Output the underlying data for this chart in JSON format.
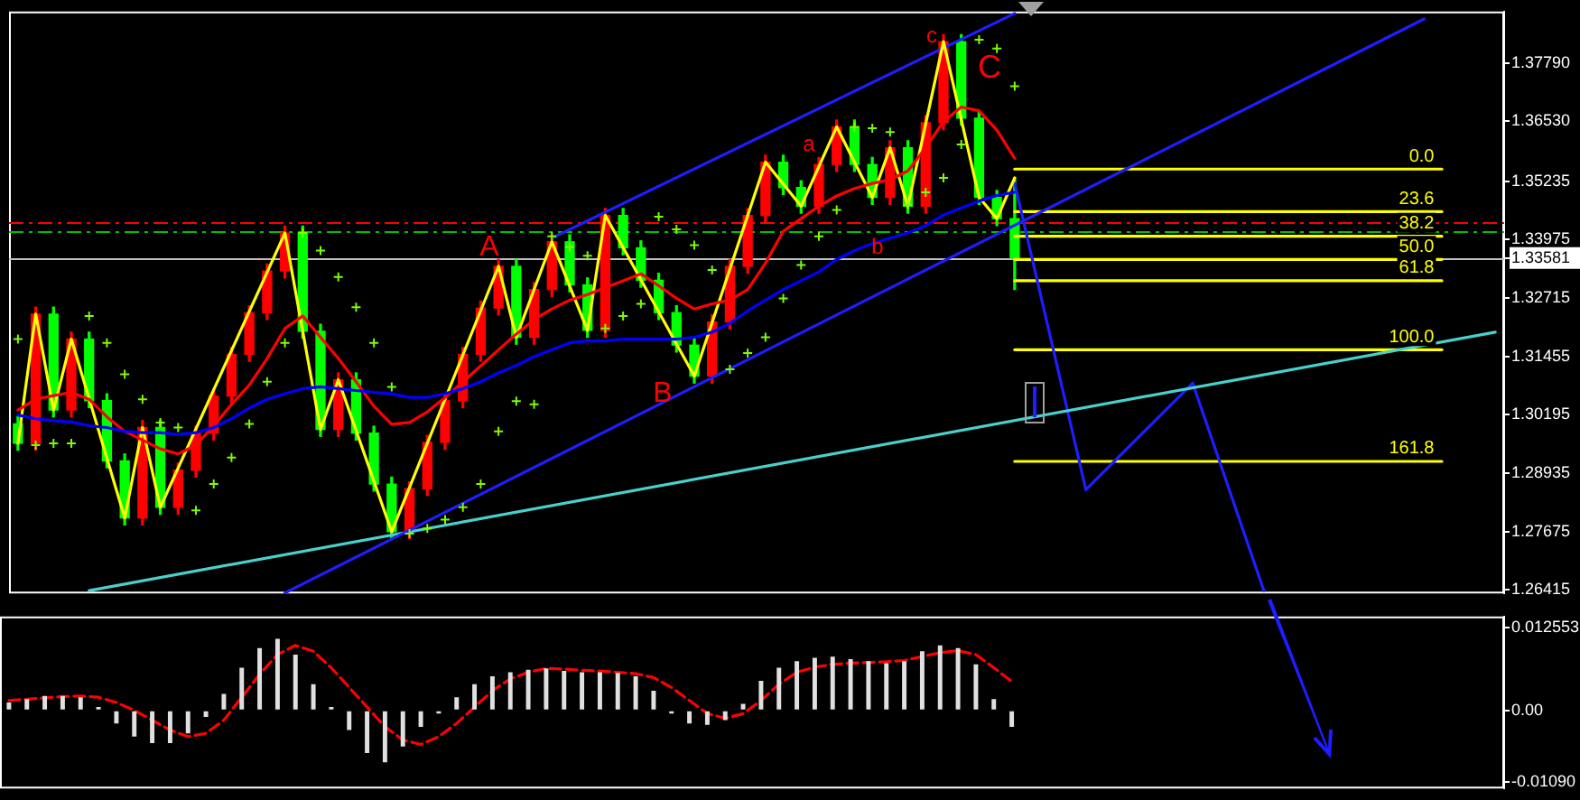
{
  "chart_data": [
    {
      "type": "candlestick",
      "categories": [
        null,
        null,
        null,
        null,
        null,
        null,
        null,
        null,
        null,
        null,
        null,
        null,
        null,
        null,
        null,
        null,
        null,
        null,
        null,
        null,
        null,
        null,
        null,
        null,
        null,
        null,
        null,
        null,
        null,
        null,
        null,
        null,
        null,
        null,
        null,
        null,
        null,
        null,
        null,
        null,
        null,
        null,
        null,
        null,
        null,
        null,
        null,
        null,
        null,
        null,
        null,
        null,
        null,
        null,
        null,
        null,
        null,
        null,
        null,
        null,
        null,
        null,
        null,
        null,
        null,
        null,
        null,
        null,
        null,
        null,
        null,
        null,
        null,
        null,
        null,
        null,
        null,
        null,
        null,
        null,
        null,
        null,
        null,
        null
      ],
      "ohlc": [
        [
          1.3,
          1.3015,
          1.2943,
          1.2958
        ],
        [
          1.2958,
          1.3252,
          1.2943,
          1.3237
        ],
        [
          1.3237,
          1.3252,
          1.3015,
          1.303
        ],
        [
          1.303,
          1.3198,
          1.3015,
          1.3183
        ],
        [
          1.3183,
          1.3198,
          1.3035,
          1.305
        ],
        [
          1.305,
          1.3065,
          1.2905,
          1.292
        ],
        [
          1.292,
          1.2935,
          1.2782,
          1.2797
        ],
        [
          1.2797,
          1.3007,
          1.2782,
          1.2992
        ],
        [
          1.2992,
          1.3007,
          1.2805,
          1.282
        ],
        [
          1.282,
          1.2915,
          1.2805,
          1.29
        ],
        [
          1.29,
          1.2995,
          1.2885,
          1.298
        ],
        [
          1.298,
          1.3075,
          1.2965,
          1.306
        ],
        [
          1.306,
          1.3165,
          1.3045,
          1.315
        ],
        [
          1.315,
          1.3255,
          1.3135,
          1.324
        ],
        [
          1.324,
          1.3345,
          1.3225,
          1.333
        ],
        [
          1.333,
          1.3427,
          1.3315,
          1.3412
        ],
        [
          1.3412,
          1.3427,
          1.3185,
          1.32
        ],
        [
          1.32,
          1.3215,
          1.2973,
          1.2988
        ],
        [
          1.2988,
          1.311,
          1.2973,
          1.3095
        ],
        [
          1.3095,
          1.311,
          1.2965,
          1.298
        ],
        [
          1.298,
          1.2995,
          1.2855,
          1.287
        ],
        [
          1.287,
          1.2885,
          1.2752,
          1.2767
        ],
        [
          1.2767,
          1.2875,
          1.2752,
          1.286
        ],
        [
          1.286,
          1.2975,
          1.2845,
          1.296
        ],
        [
          1.296,
          1.3065,
          1.2945,
          1.305
        ],
        [
          1.305,
          1.3165,
          1.3035,
          1.315
        ],
        [
          1.315,
          1.3265,
          1.3135,
          1.325
        ],
        [
          1.325,
          1.3355,
          1.3235,
          1.334
        ],
        [
          1.334,
          1.3355,
          1.3172,
          1.3187
        ],
        [
          1.3187,
          1.3305,
          1.3172,
          1.329
        ],
        [
          1.329,
          1.3408,
          1.3275,
          1.3393
        ],
        [
          1.3393,
          1.3408,
          1.3285,
          1.33
        ],
        [
          1.33,
          1.3315,
          1.3187,
          1.3202
        ],
        [
          1.3202,
          1.3465,
          1.3187,
          1.345
        ],
        [
          1.345,
          1.3465,
          1.3365,
          1.338
        ],
        [
          1.338,
          1.3395,
          1.3295,
          1.331
        ],
        [
          1.331,
          1.3325,
          1.3225,
          1.324
        ],
        [
          1.324,
          1.3255,
          1.3155,
          1.317
        ],
        [
          1.317,
          1.3185,
          1.3088,
          1.3103
        ],
        [
          1.3103,
          1.3235,
          1.3088,
          1.322
        ],
        [
          1.322,
          1.3355,
          1.3205,
          1.334
        ],
        [
          1.334,
          1.3465,
          1.3325,
          1.345
        ],
        [
          1.345,
          1.358,
          1.3435,
          1.3565
        ],
        [
          1.3565,
          1.358,
          1.3495,
          1.351
        ],
        [
          1.351,
          1.3525,
          1.3455,
          1.347
        ],
        [
          1.347,
          1.3575,
          1.3455,
          1.356
        ],
        [
          1.356,
          1.3656,
          1.3545,
          1.3641
        ],
        [
          1.3641,
          1.3656,
          1.3545,
          1.356
        ],
        [
          1.356,
          1.3575,
          1.3474,
          1.3489
        ],
        [
          1.3489,
          1.3611,
          1.3474,
          1.3596
        ],
        [
          1.3596,
          1.3611,
          1.3455,
          1.347
        ],
        [
          1.347,
          1.3665,
          1.3455,
          1.365
        ],
        [
          1.365,
          1.384,
          1.3635,
          1.3825
        ],
        [
          1.3825,
          1.384,
          1.3645,
          1.366
        ],
        [
          1.366,
          1.3675,
          1.3474,
          1.3489
        ],
        [
          1.3489,
          1.3504,
          1.3428,
          1.3443
        ],
        [
          1.3443,
          1.3531,
          1.329,
          1.3358
        ],
        null,
        null,
        null,
        null,
        null,
        null,
        null,
        null,
        null,
        null,
        null,
        null,
        null,
        null,
        null,
        null,
        null,
        null,
        null,
        null,
        null,
        null,
        null,
        null,
        null,
        null,
        null
      ],
      "colors": [
        "#00ff00",
        "#ff0000",
        "#00ff00",
        "#ff0000",
        "#00ff00",
        "#00ff00",
        "#00ff00",
        "#ff0000",
        "#00ff00",
        "#ff0000",
        "#ff0000",
        "#ff0000",
        "#ff0000",
        "#ff0000",
        "#ff0000",
        "#ff0000",
        "#00ff00",
        "#00ff00",
        "#ff0000",
        "#00ff00",
        "#00ff00",
        "#00ff00",
        "#ff0000",
        "#ff0000",
        "#ff0000",
        "#ff0000",
        "#ff0000",
        "#ff0000",
        "#00ff00",
        "#ff0000",
        "#ff0000",
        "#00ff00",
        "#00ff00",
        "#ff0000",
        "#00ff00",
        "#00ff00",
        "#00ff00",
        "#00ff00",
        "#00ff00",
        "#ff0000",
        "#ff0000",
        "#ff0000",
        "#ff0000",
        "#00ff00",
        "#00ff00",
        "#ff0000",
        "#ff0000",
        "#00ff00",
        "#00ff00",
        "#ff0000",
        "#00ff00",
        "#ff0000",
        "#ff0000",
        "#00ff00",
        "#00ff00",
        "#00ff00",
        "#00ff00",
        null,
        null,
        null,
        null,
        null,
        null,
        null,
        null,
        null,
        null,
        null,
        null,
        null,
        null,
        null,
        null,
        null,
        null,
        null,
        null,
        null,
        null,
        null,
        null,
        null,
        null,
        null
      ],
      "series": [
        {
          "type": "line",
          "color": "#0000ff",
          "values": [
            1.3019,
            1.3011,
            1.3007,
            1.3004,
            1.2996,
            1.2992,
            1.2984,
            1.2981,
            1.2981,
            1.2977,
            1.2981,
            1.2992,
            1.3011,
            1.3034,
            1.3053,
            1.3065,
            1.3076,
            1.308,
            1.3076,
            1.3072,
            1.3068,
            1.3065,
            1.3057,
            1.3057,
            1.3065,
            1.3076,
            1.3091,
            1.311,
            1.3126,
            1.3145,
            1.316,
            1.3175,
            1.3179,
            1.3179,
            1.3183,
            1.3183,
            1.3183,
            1.3183,
            1.3187,
            1.3198,
            1.3217,
            1.3244,
            1.3267,
            1.329,
            1.3309,
            1.3328,
            1.3355,
            1.3374,
            1.3389,
            1.3401,
            1.3412,
            1.3428,
            1.3451,
            1.3466,
            1.3481,
            1.3493,
            1.35,
            null,
            null,
            null,
            null,
            null,
            null,
            null,
            null,
            null,
            null,
            null,
            null,
            null,
            null,
            null,
            null,
            null,
            null,
            null,
            null,
            null,
            null,
            null,
            null,
            null,
            null,
            null
          ]
        },
        {
          "type": "line",
          "color": "#ff0000",
          "values": [
            1.303,
            1.3053,
            1.3061,
            1.3068,
            1.3053,
            1.3015,
            1.2984,
            1.2965,
            1.2946,
            1.2935,
            1.2954,
            1.2996,
            1.3042,
            1.3084,
            1.3141,
            1.3206,
            1.3233,
            1.3187,
            1.3141,
            1.3091,
            1.3038,
            1.2999,
            1.3003,
            1.3026,
            1.3057,
            1.3091,
            1.3125,
            1.316,
            1.3194,
            1.3225,
            1.3248,
            1.3267,
            1.3279,
            1.3294,
            1.3309,
            1.3324,
            1.3298,
            1.3271,
            1.3248,
            1.3259,
            1.3267,
            1.329,
            1.3347,
            1.3416,
            1.3443,
            1.347,
            1.3492,
            1.3508,
            1.3519,
            1.3527,
            1.3546,
            1.3596,
            1.3653,
            1.3684,
            1.3676,
            1.3634,
            1.3573,
            null,
            null,
            null,
            null,
            null,
            null,
            null,
            null,
            null,
            null,
            null,
            null,
            null,
            null,
            null,
            null,
            null,
            null,
            null,
            null,
            null,
            null,
            null,
            null,
            null,
            null,
            null
          ]
        },
        {
          "type": "scatter",
          "marker": "cross",
          "color": "#7cfc00",
          "values": [
            1.3183,
            1.2954,
            1.2958,
            1.2958,
            1.3233,
            1.3175,
            1.3107,
            1.3053,
            1.3003,
            1.2992,
            1.2813,
            1.287,
            1.2927,
            1.3,
            1.3091,
            1.3175,
            1.3412,
            1.3374,
            1.3317,
            1.3252,
            1.3175,
            1.308,
            1.2763,
            1.2774,
            1.2793,
            1.282,
            1.287,
            1.2984,
            1.3049,
            1.3042,
            1.3405,
            1.3382,
            1.3363,
            1.3206,
            1.3233,
            1.3259,
            1.3447,
            1.342,
            1.3386,
            1.3332,
            1.3118,
            1.3153,
            1.3187,
            1.3271,
            1.3343,
            1.3405,
            1.3462,
            1.3641,
            1.3638,
            1.363,
            1.3473,
            1.35,
            1.3531,
            1.3603,
            1.3829,
            1.381,
            1.3729,
            null,
            null,
            null,
            null,
            null,
            null,
            null,
            null,
            null,
            null,
            null,
            null,
            null,
            null,
            null,
            null,
            null,
            null,
            null,
            null,
            null,
            null,
            null,
            null,
            null,
            null,
            null
          ]
        },
        {
          "type": "line",
          "color": "#ffff00",
          "values": [
            1.2958,
            1.3237,
            1.303,
            1.3183,
            null,
            null,
            1.2797,
            1.2992,
            1.282,
            null,
            null,
            null,
            null,
            null,
            null,
            1.3412,
            null,
            1.2988,
            1.3095,
            null,
            null,
            1.2767,
            null,
            null,
            null,
            null,
            null,
            1.334,
            1.3187,
            null,
            1.3393,
            null,
            1.3202,
            1.345,
            null,
            null,
            null,
            null,
            1.3103,
            null,
            null,
            null,
            1.3565,
            null,
            1.347,
            null,
            1.3641,
            null,
            1.3489,
            1.3596,
            1.347,
            null,
            1.3825,
            null,
            1.3489,
            1.3443,
            1.3531,
            null,
            null,
            null,
            null,
            null,
            null,
            null,
            null,
            null,
            null,
            null,
            null,
            null,
            null,
            null,
            null,
            null,
            null,
            null,
            null,
            null,
            null,
            null,
            null,
            null,
            null,
            null
          ]
        },
        {
          "type": "line",
          "color": "#1e1eff",
          "values": [
            null,
            null,
            null,
            null,
            null,
            null,
            null,
            null,
            null,
            null,
            null,
            null,
            null,
            null,
            null,
            null,
            null,
            null,
            null,
            null,
            null,
            null,
            null,
            null,
            null,
            null,
            null,
            null,
            null,
            null,
            1.3401,
            null,
            null,
            null,
            null,
            null,
            null,
            null,
            null,
            null,
            null,
            null,
            null,
            null,
            null,
            null,
            null,
            null,
            null,
            null,
            null,
            null,
            null,
            null,
            null,
            null,
            1.3886,
            null,
            null,
            null,
            null,
            null,
            null,
            null,
            null,
            null,
            null,
            null,
            null,
            null,
            null,
            null,
            null,
            null,
            null,
            null,
            null,
            null,
            null,
            null,
            null,
            null,
            null,
            null
          ]
        },
        {
          "type": "line",
          "color": "#1e1eff",
          "values": [
            null,
            null,
            null,
            null,
            null,
            null,
            null,
            null,
            null,
            null,
            null,
            null,
            null,
            null,
            null,
            1.2635,
            null,
            null,
            null,
            null,
            null,
            null,
            null,
            null,
            null,
            null,
            null,
            null,
            null,
            null,
            null,
            null,
            null,
            null,
            null,
            null,
            null,
            null,
            null,
            null,
            null,
            null,
            null,
            null,
            null,
            null,
            null,
            null,
            null,
            null,
            null,
            null,
            null,
            null,
            null,
            null,
            null,
            null,
            null,
            null,
            null,
            null,
            null,
            null,
            null,
            null,
            null,
            null,
            null,
            null,
            null,
            null,
            null,
            null,
            null,
            null,
            null,
            null,
            null,
            1.3874,
            null,
            null,
            null,
            null
          ]
        },
        {
          "type": "line",
          "color": "#48d1cc",
          "values": [
            null,
            null,
            null,
            null,
            1.264,
            null,
            null,
            null,
            null,
            null,
            null,
            null,
            null,
            null,
            null,
            null,
            null,
            null,
            null,
            null,
            null,
            null,
            null,
            null,
            null,
            null,
            null,
            null,
            null,
            null,
            null,
            null,
            null,
            null,
            null,
            null,
            null,
            null,
            null,
            null,
            null,
            null,
            null,
            null,
            null,
            null,
            null,
            null,
            null,
            null,
            null,
            null,
            null,
            null,
            null,
            null,
            null,
            null,
            null,
            null,
            null,
            null,
            null,
            null,
            null,
            null,
            null,
            null,
            null,
            null,
            null,
            null,
            null,
            null,
            null,
            null,
            null,
            null,
            null,
            null,
            null,
            null,
            null,
            1.3198
          ]
        },
        {
          "type": "line",
          "color": "#1e1eff",
          "values": [
            null,
            null,
            null,
            null,
            null,
            null,
            null,
            null,
            null,
            null,
            null,
            null,
            null,
            null,
            null,
            null,
            null,
            null,
            null,
            null,
            null,
            null,
            null,
            null,
            null,
            null,
            null,
            null,
            null,
            null,
            null,
            null,
            null,
            null,
            null,
            null,
            null,
            null,
            null,
            null,
            null,
            null,
            null,
            null,
            null,
            null,
            null,
            null,
            null,
            null,
            null,
            null,
            null,
            null,
            null,
            null,
            1.3519,
            null,
            null,
            null,
            1.2858,
            null,
            null,
            null,
            null,
            null,
            1.3088,
            null,
            null,
            null,
            1.264,
            null,
            null,
            null,
            null,
            null,
            null,
            null,
            null,
            null,
            null,
            null,
            null,
            null
          ]
        },
        {
          "type": "line",
          "color": "#ffff00",
          "values": [
            null,
            null,
            null,
            null,
            null,
            null,
            null,
            null,
            null,
            null,
            null,
            null,
            null,
            null,
            null,
            null,
            null,
            null,
            null,
            null,
            null,
            null,
            null,
            null,
            null,
            null,
            null,
            null,
            null,
            null,
            null,
            null,
            null,
            null,
            null,
            null,
            null,
            null,
            null,
            null,
            null,
            null,
            null,
            null,
            null,
            null,
            null,
            null,
            null,
            null,
            null,
            null,
            null,
            null,
            null,
            null,
            1.355,
            null,
            null,
            null,
            null,
            null,
            null,
            null,
            null,
            null,
            null,
            null,
            null,
            null,
            null,
            null,
            null,
            null,
            null,
            null,
            null,
            null,
            null,
            null,
            1.355,
            null,
            null,
            null
          ]
        },
        {
          "type": "line",
          "color": "#ffff00",
          "values": [
            null,
            null,
            null,
            null,
            null,
            null,
            null,
            null,
            null,
            null,
            null,
            null,
            null,
            null,
            null,
            null,
            null,
            null,
            null,
            null,
            null,
            null,
            null,
            null,
            null,
            null,
            null,
            null,
            null,
            null,
            null,
            null,
            null,
            null,
            null,
            null,
            null,
            null,
            null,
            null,
            null,
            null,
            null,
            null,
            null,
            null,
            null,
            null,
            null,
            null,
            null,
            null,
            null,
            null,
            null,
            null,
            1.3458,
            null,
            null,
            null,
            null,
            null,
            null,
            null,
            null,
            null,
            null,
            null,
            null,
            null,
            null,
            null,
            null,
            null,
            null,
            null,
            null,
            null,
            null,
            null,
            1.3458,
            null,
            null,
            null
          ]
        },
        {
          "type": "line",
          "color": "#ffff00",
          "values": [
            null,
            null,
            null,
            null,
            null,
            null,
            null,
            null,
            null,
            null,
            null,
            null,
            null,
            null,
            null,
            null,
            null,
            null,
            null,
            null,
            null,
            null,
            null,
            null,
            null,
            null,
            null,
            null,
            null,
            null,
            null,
            null,
            null,
            null,
            null,
            null,
            null,
            null,
            null,
            null,
            null,
            null,
            null,
            null,
            null,
            null,
            null,
            null,
            null,
            null,
            null,
            null,
            null,
            null,
            null,
            null,
            1.3405,
            null,
            null,
            null,
            null,
            null,
            null,
            null,
            null,
            null,
            null,
            null,
            null,
            null,
            null,
            null,
            null,
            null,
            null,
            null,
            null,
            null,
            null,
            null,
            1.3405,
            null,
            null,
            null
          ]
        },
        {
          "type": "line",
          "color": "#ffff00",
          "values": [
            null,
            null,
            null,
            null,
            null,
            null,
            null,
            null,
            null,
            null,
            null,
            null,
            null,
            null,
            null,
            null,
            null,
            null,
            null,
            null,
            null,
            null,
            null,
            null,
            null,
            null,
            null,
            null,
            null,
            null,
            null,
            null,
            null,
            null,
            null,
            null,
            null,
            null,
            null,
            null,
            null,
            null,
            null,
            null,
            null,
            null,
            null,
            null,
            null,
            null,
            null,
            null,
            null,
            null,
            null,
            null,
            1.3355,
            null,
            null,
            null,
            null,
            null,
            null,
            null,
            null,
            null,
            null,
            null,
            null,
            null,
            null,
            null,
            null,
            null,
            null,
            null,
            null,
            null,
            null,
            null,
            1.3355,
            null,
            null,
            null
          ]
        },
        {
          "type": "line",
          "color": "#ffff00",
          "values": [
            null,
            null,
            null,
            null,
            null,
            null,
            null,
            null,
            null,
            null,
            null,
            null,
            null,
            null,
            null,
            null,
            null,
            null,
            null,
            null,
            null,
            null,
            null,
            null,
            null,
            null,
            null,
            null,
            null,
            null,
            null,
            null,
            null,
            null,
            null,
            null,
            null,
            null,
            null,
            null,
            null,
            null,
            null,
            null,
            null,
            null,
            null,
            null,
            null,
            null,
            null,
            null,
            null,
            null,
            null,
            null,
            1.3309,
            null,
            null,
            null,
            null,
            null,
            null,
            null,
            null,
            null,
            null,
            null,
            null,
            null,
            null,
            null,
            null,
            null,
            null,
            null,
            null,
            null,
            null,
            null,
            1.3309,
            null,
            null,
            null
          ]
        },
        {
          "type": "line",
          "color": "#ffff00",
          "values": [
            null,
            null,
            null,
            null,
            null,
            null,
            null,
            null,
            null,
            null,
            null,
            null,
            null,
            null,
            null,
            null,
            null,
            null,
            null,
            null,
            null,
            null,
            null,
            null,
            null,
            null,
            null,
            null,
            null,
            null,
            null,
            null,
            null,
            null,
            null,
            null,
            null,
            null,
            null,
            null,
            null,
            null,
            null,
            null,
            null,
            null,
            null,
            null,
            null,
            null,
            null,
            null,
            null,
            null,
            null,
            null,
            1.316,
            null,
            null,
            null,
            null,
            null,
            null,
            null,
            null,
            null,
            null,
            null,
            null,
            null,
            null,
            null,
            null,
            null,
            null,
            null,
            null,
            null,
            null,
            null,
            1.316,
            null,
            null,
            null
          ]
        },
        {
          "type": "line",
          "color": "#ffff00",
          "values": [
            null,
            null,
            null,
            null,
            null,
            null,
            null,
            null,
            null,
            null,
            null,
            null,
            null,
            null,
            null,
            null,
            null,
            null,
            null,
            null,
            null,
            null,
            null,
            null,
            null,
            null,
            null,
            null,
            null,
            null,
            null,
            null,
            null,
            null,
            null,
            null,
            null,
            null,
            null,
            null,
            null,
            null,
            null,
            null,
            null,
            null,
            null,
            null,
            null,
            null,
            null,
            null,
            null,
            null,
            null,
            null,
            1.2919,
            null,
            null,
            null,
            null,
            null,
            null,
            null,
            null,
            null,
            null,
            null,
            null,
            null,
            null,
            null,
            null,
            null,
            null,
            null,
            null,
            null,
            null,
            null,
            1.2919,
            null,
            null,
            null
          ]
        }
      ],
      "ylim": [
        1.2634,
        1.389
      ],
      "yticks": [
        {
          "value": 1.3779,
          "label": "1.37790"
        },
        {
          "value": 1.3653,
          "label": "1.36530"
        },
        1.35235,
        1.33975,
        1.33581,
        1.32715,
        1.31455,
        1.30195,
        1.28935,
        1.27675,
        1.26415
      ],
      "ref_lines": [
        {
          "axis": "y",
          "value": 1.3435,
          "color": "#ff0000",
          "line_style": "dashed"
        },
        {
          "axis": "y",
          "value": 1.3416,
          "color": "#00c000",
          "line_style": "dashed"
        },
        {
          "axis": "y",
          "value": 1.33581,
          "color": "#c0c0c0"
        }
      ],
      "annotations": [
        "A",
        "B",
        "a",
        "b",
        "c",
        "C",
        {
          "text": "0.0",
          "y": 1.355
        },
        {
          "text": "23.6",
          "y": 1.3458
        },
        {
          "text": "38.2",
          "y": 1.3405
        },
        {
          "text": "50.0",
          "y": 1.3355
        },
        {
          "text": "61.8",
          "y": 1.3309
        },
        {
          "text": "100.0",
          "y": 1.316
        },
        {
          "text": "161.8",
          "y": 1.2919
        }
      ],
      "tick_labels": "y",
      "grid": false,
      "legend": false
    },
    {
      "type": "bar",
      "categories": [
        null,
        null,
        null,
        null,
        null,
        null,
        null,
        null,
        null,
        null,
        null,
        null,
        null,
        null,
        null,
        null,
        null,
        null,
        null,
        null,
        null,
        null,
        null,
        null,
        null,
        null,
        null,
        null,
        null,
        null,
        null,
        null,
        null,
        null,
        null,
        null,
        null,
        null,
        null,
        null,
        null,
        null,
        null,
        null,
        null,
        null,
        null,
        null,
        null,
        null,
        null,
        null,
        null,
        null,
        null,
        null,
        null,
        null,
        null,
        null,
        null,
        null,
        null,
        null,
        null,
        null,
        null,
        null,
        null,
        null,
        null,
        null,
        null,
        null,
        null,
        null,
        null,
        null,
        null,
        null,
        null,
        null,
        null,
        null
      ],
      "series": [
        {
          "type": "bar",
          "color": "#e0e0e0",
          "values": [
            0.0012,
            0.0017,
            0.0022,
            0.0022,
            0.002,
            0.0005,
            -0.002,
            -0.004,
            -0.005,
            -0.005,
            -0.0035,
            -0.001,
            0.0025,
            0.0065,
            0.0095,
            0.0109,
            0.0085,
            0.004,
            0.0005,
            -0.003,
            -0.0065,
            -0.0079,
            -0.0055,
            -0.0025,
            -0.0005,
            0.002,
            0.004,
            0.0052,
            0.0058,
            0.0062,
            0.0064,
            0.006,
            0.0058,
            0.0058,
            0.0057,
            0.0052,
            0.003,
            -0.0005,
            -0.002,
            -0.0022,
            -0.0015,
            0.001,
            0.0045,
            0.0065,
            0.0075,
            0.008,
            0.0082,
            0.0078,
            0.0075,
            0.0072,
            0.0075,
            0.009,
            0.0099,
            0.0095,
            0.007,
            0.0017,
            -0.0025,
            null,
            null,
            null,
            null,
            null,
            null,
            null,
            null,
            null,
            null,
            null,
            null,
            null,
            null,
            null,
            null,
            null,
            null,
            null,
            null,
            null,
            null,
            null,
            null,
            null,
            null,
            null
          ]
        },
        {
          "type": "line",
          "color": "#ff0000",
          "line_style": "dashed",
          "values": [
            0.0015,
            0.0017,
            0.0019,
            0.0021,
            0.0022,
            0.002,
            0.0012,
            0.0,
            -0.0015,
            -0.003,
            -0.004,
            -0.0035,
            -0.0015,
            0.002,
            0.0055,
            0.0085,
            0.0099,
            0.009,
            0.0065,
            0.0035,
            0.0005,
            -0.0025,
            -0.0045,
            -0.0052,
            -0.004,
            -0.002,
            0.0005,
            0.003,
            0.0048,
            0.0058,
            0.0064,
            0.0063,
            0.0061,
            0.006,
            0.0058,
            0.0056,
            0.005,
            0.0035,
            0.0015,
            -0.0005,
            -0.0012,
            -0.0005,
            0.0015,
            0.004,
            0.0058,
            0.0066,
            0.007,
            0.0072,
            0.0073,
            0.0074,
            0.0076,
            0.0082,
            0.0088,
            0.0091,
            0.0085,
            0.0065,
            0.0044,
            null,
            null,
            null,
            null,
            null,
            null,
            null,
            null,
            null,
            null,
            null,
            null,
            null,
            null,
            null,
            null,
            null,
            null,
            null,
            null,
            null,
            null,
            null,
            null,
            null,
            null,
            null
          ]
        }
      ],
      "ylim": [
        -0.0119,
        0.0143
      ],
      "yticks": [
        {
          "value": 0.012553,
          "label": "0.012553"
        },
        {
          "value": 0,
          "label": "0.00"
        },
        {
          "value": -0.0109,
          "label": "-0.01090"
        }
      ],
      "tick_labels": "y",
      "grid": false,
      "legend": false
    }
  ]
}
